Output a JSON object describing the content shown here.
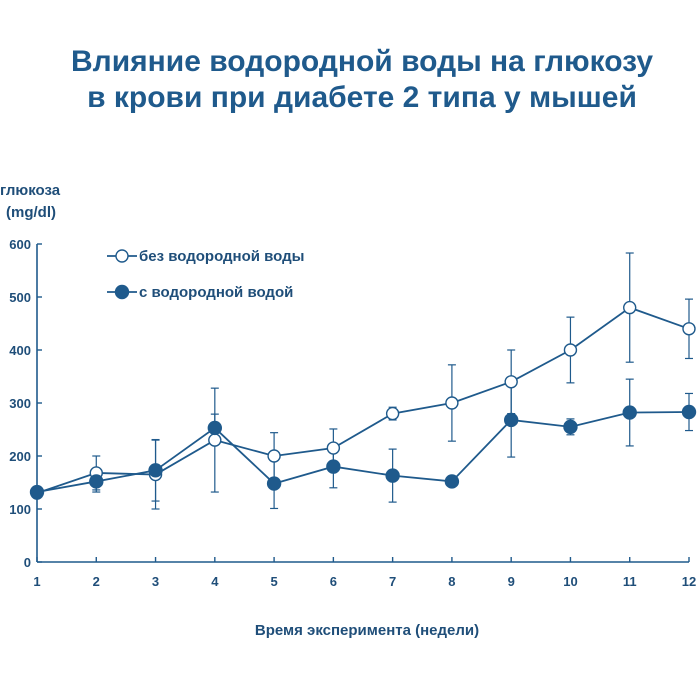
{
  "chart_data": {
    "type": "line",
    "title_lines": [
      "Влияние водородной воды на глюкозу",
      "в крови при диабете 2 типа у мышей"
    ],
    "ylabel_lines": [
      "глюкоза",
      "(mg/dl)"
    ],
    "xlabel": "Время эксперимента (недели)",
    "x": [
      1,
      2,
      3,
      4,
      5,
      6,
      7,
      8,
      9,
      10,
      11,
      12
    ],
    "xlim": [
      1,
      12
    ],
    "ylim": [
      0,
      600
    ],
    "yticks": [
      0,
      100,
      200,
      300,
      400,
      500,
      600
    ],
    "grid": false,
    "legend_position": "top-left",
    "series": [
      {
        "name": "без водородной воды",
        "marker": "open-circle",
        "color": "#1f5a8c",
        "values": [
          130,
          168,
          165,
          230,
          200,
          215,
          280,
          300,
          340,
          400,
          480,
          440
        ],
        "error": [
          5,
          32,
          65,
          98,
          44,
          36,
          12,
          72,
          60,
          62,
          103,
          56
        ]
      },
      {
        "name": "с водородной водой",
        "marker": "filled-circle",
        "color": "#1f5a8c",
        "values": [
          132,
          152,
          173,
          253,
          148,
          180,
          163,
          152,
          268,
          255,
          282,
          283
        ],
        "error": [
          5,
          20,
          58,
          26,
          47,
          40,
          50,
          0,
          70,
          15,
          63,
          35
        ]
      }
    ]
  }
}
